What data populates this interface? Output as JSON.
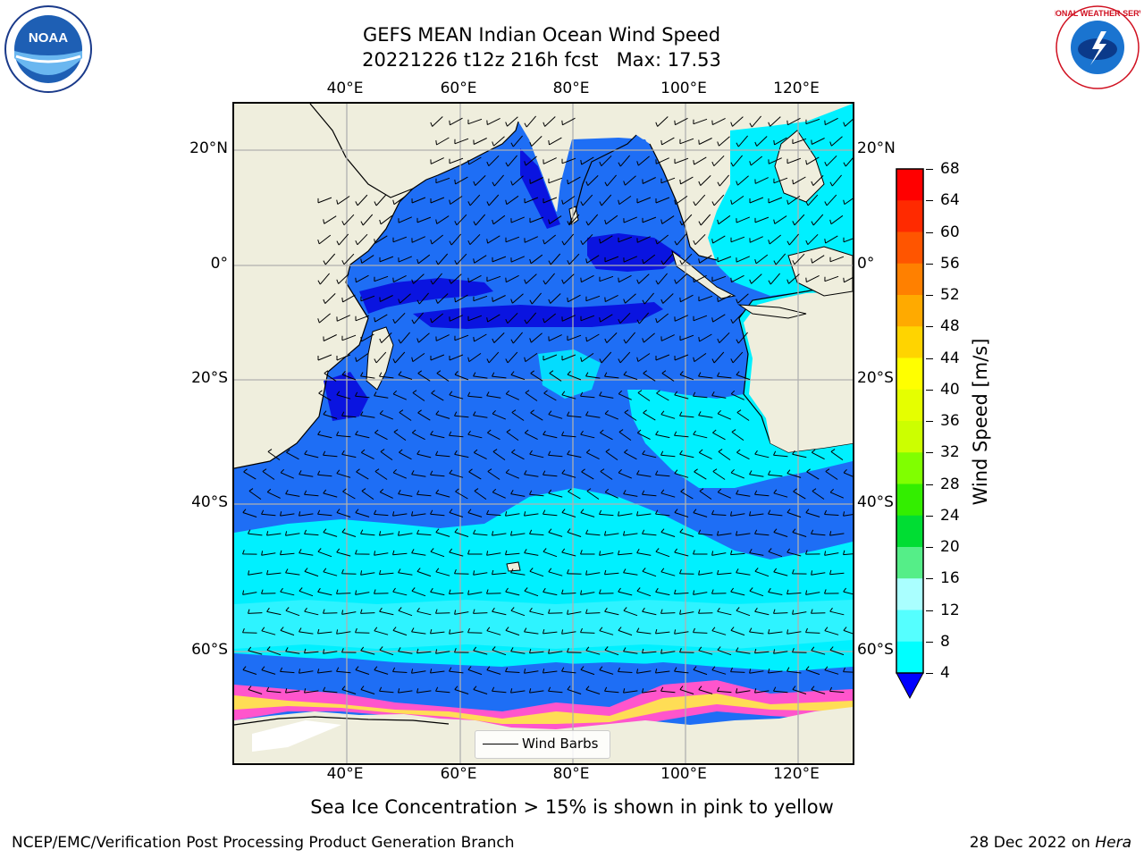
{
  "header": {
    "title_line1": "GEFS MEAN Indian Ocean Wind Speed",
    "title_line2": "20221226 t12z 216h fcst   Max: 17.53"
  },
  "map": {
    "lon_labels": [
      "40°E",
      "60°E",
      "80°E",
      "100°E",
      "120°E"
    ],
    "lat_labels": [
      "20°N",
      "0°",
      "20°S",
      "40°S",
      "60°S"
    ],
    "colors": {
      "land": "#efeedd",
      "sea_ice": "#ffffff",
      "grid": "#b0b0b0",
      "wind_4_8": "#1e6ef5",
      "wind_8_12": "#00f0ff",
      "wind_below_4": "#0a14e0"
    }
  },
  "legend": {
    "label": "Wind Barbs"
  },
  "colorbar": {
    "label": "Wind Speed [m/s]",
    "ticks": [
      "68",
      "64",
      "60",
      "56",
      "52",
      "48",
      "44",
      "40",
      "36",
      "32",
      "28",
      "24",
      "20",
      "16",
      "12",
      "8",
      "4"
    ],
    "colors": [
      "#ff0000",
      "#ff2a00",
      "#ff5500",
      "#ff8000",
      "#ffaa00",
      "#ffd400",
      "#ffff00",
      "#e5ff00",
      "#ccff00",
      "#80ff00",
      "#33ee00",
      "#00dd33",
      "#55ee88",
      "#aaffff",
      "#55ffff",
      "#00ffff",
      "#1a6bff"
    ],
    "under_color": "#0000ff"
  },
  "caption": "Sea Ice Concentration > 15% is shown in pink to yellow",
  "footer": {
    "left": "NCEP/EMC/Verification Post Processing Product Generation Branch",
    "right_prefix": "28 Dec 2022 on ",
    "right_host": "Hera"
  },
  "logos": {
    "noaa_text": "NOAA",
    "nws_text": "NATIONAL WEATHER SERVICE"
  }
}
